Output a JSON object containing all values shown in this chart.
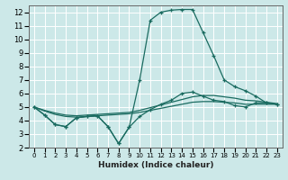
{
  "title": "",
  "xlabel": "Humidex (Indice chaleur)",
  "bg_color": "#cce8e8",
  "grid_color": "#ffffff",
  "line_color": "#1a6b60",
  "xlim": [
    -0.5,
    23.5
  ],
  "ylim": [
    2,
    12.5
  ],
  "xticks": [
    0,
    1,
    2,
    3,
    4,
    5,
    6,
    7,
    8,
    9,
    10,
    11,
    12,
    13,
    14,
    15,
    16,
    17,
    18,
    19,
    20,
    21,
    22,
    23
  ],
  "yticks": [
    2,
    3,
    4,
    5,
    6,
    7,
    8,
    9,
    10,
    11,
    12
  ],
  "series_spike": {
    "x": [
      0,
      1,
      2,
      3,
      4,
      5,
      6,
      7,
      8,
      9,
      10,
      11,
      12,
      13,
      14,
      15,
      16,
      17,
      18,
      19,
      20,
      21,
      22,
      23
    ],
    "y": [
      5.0,
      4.4,
      3.7,
      3.55,
      4.2,
      4.3,
      4.35,
      3.55,
      2.3,
      3.5,
      7.0,
      11.4,
      12.0,
      12.15,
      12.2,
      12.2,
      10.5,
      8.8,
      7.0,
      6.5,
      6.2,
      5.8,
      5.3,
      5.2
    ]
  },
  "series_flat": {
    "x": [
      0,
      1,
      2,
      3,
      4,
      5,
      6,
      7,
      8,
      9,
      10,
      11,
      12,
      13,
      14,
      15,
      16,
      17,
      18,
      19,
      20,
      21,
      22,
      23
    ],
    "y": [
      5.0,
      4.4,
      3.7,
      3.55,
      4.2,
      4.3,
      4.35,
      3.55,
      2.3,
      3.5,
      4.3,
      4.8,
      5.2,
      5.5,
      6.0,
      6.1,
      5.8,
      5.5,
      5.4,
      5.1,
      5.0,
      5.3,
      5.3,
      5.2
    ]
  },
  "series_line1": {
    "x": [
      0,
      1,
      2,
      3,
      4,
      5,
      6,
      7,
      8,
      9,
      10,
      11,
      12,
      13,
      14,
      15,
      16,
      17,
      18,
      19,
      20,
      21,
      22,
      23
    ],
    "y": [
      5.0,
      4.7,
      4.45,
      4.3,
      4.25,
      4.3,
      4.35,
      4.4,
      4.45,
      4.5,
      4.6,
      4.75,
      4.9,
      5.05,
      5.2,
      5.35,
      5.4,
      5.4,
      5.35,
      5.3,
      5.2,
      5.2,
      5.2,
      5.2
    ]
  },
  "series_line2": {
    "x": [
      0,
      1,
      2,
      3,
      4,
      5,
      6,
      7,
      8,
      9,
      10,
      11,
      12,
      13,
      14,
      15,
      16,
      17,
      18,
      19,
      20,
      21,
      22,
      23
    ],
    "y": [
      5.0,
      4.75,
      4.55,
      4.4,
      4.35,
      4.4,
      4.45,
      4.5,
      4.55,
      4.6,
      4.75,
      4.95,
      5.15,
      5.35,
      5.55,
      5.75,
      5.85,
      5.85,
      5.75,
      5.65,
      5.5,
      5.45,
      5.35,
      5.25
    ]
  }
}
